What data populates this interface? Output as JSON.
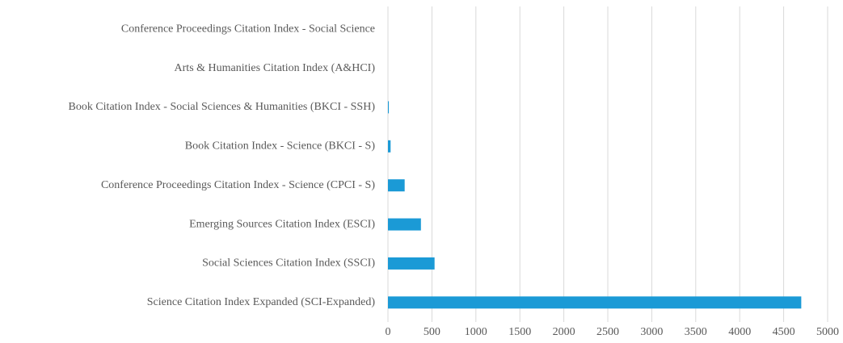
{
  "chart_data": {
    "type": "bar",
    "orientation": "horizontal",
    "categories": [
      "Conference Proceedings Citation Index - Social Science",
      "Arts & Humanities Citation Index (A&HCI)",
      "Book Citation Index - Social Sciences & Humanities (BKCI - SSH)",
      "Book Citation Index - Science (BKCI - S)",
      "Conference Proceedings Citation Index - Science (CPCI - S)",
      "Emerging Sources Citation Index (ESCI)",
      "Social Sciences Citation Index (SSCI)",
      "Science Citation Index Expanded (SCI-Expanded)"
    ],
    "values": [
      0,
      0,
      10,
      30,
      190,
      375,
      530,
      4700
    ],
    "color": "#1b9ad6",
    "xlim": [
      0,
      5000
    ],
    "xticks": [
      0,
      500,
      1000,
      1500,
      2000,
      2500,
      3000,
      3500,
      4000,
      4500,
      5000
    ],
    "grid": true
  }
}
